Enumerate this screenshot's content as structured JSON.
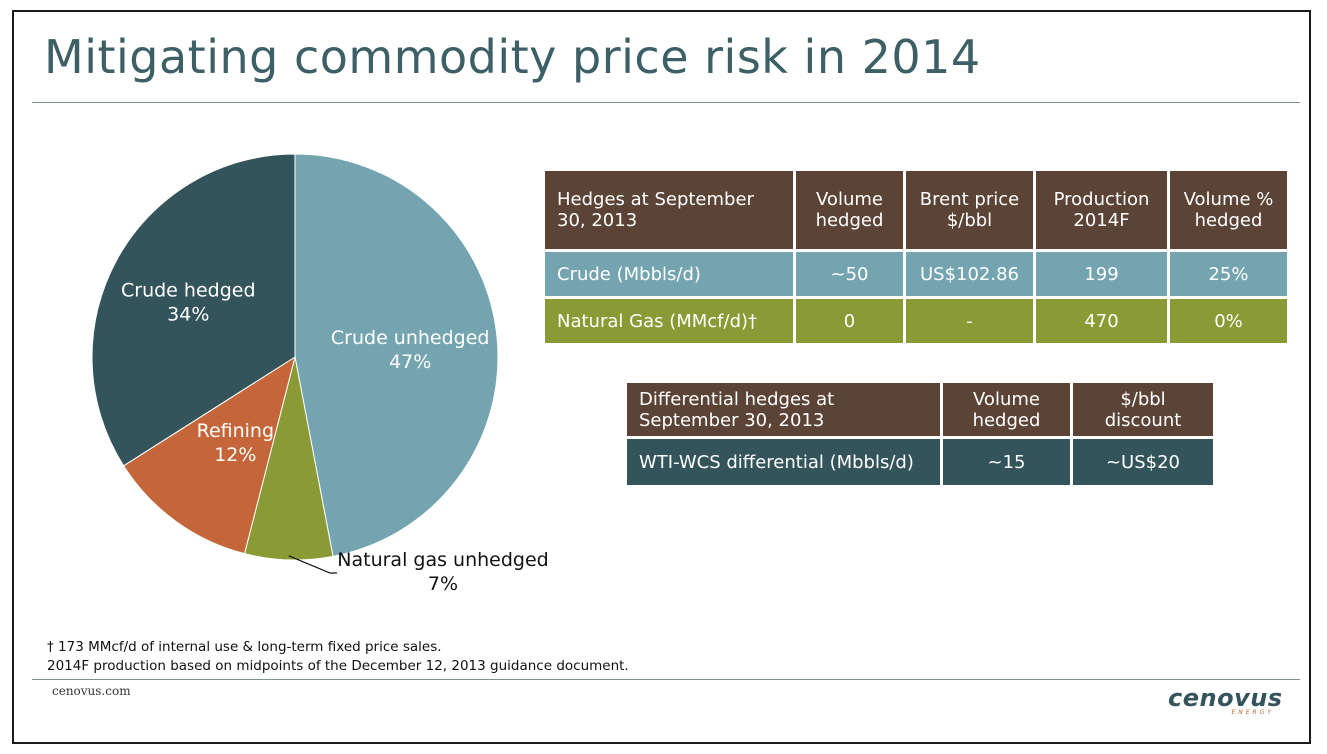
{
  "title": "Mitigating commodity price risk in 2014",
  "chart_data": {
    "type": "pie",
    "slices": [
      {
        "label": "Crude unhedged",
        "pct_text": "47%",
        "value": 47,
        "color": "#74a4b0"
      },
      {
        "label": "Natural gas unhedged",
        "pct_text": "7%",
        "value": 7,
        "color": "#8a9a35"
      },
      {
        "label": "Refining",
        "pct_text": "12%",
        "value": 12,
        "color": "#c5663a"
      },
      {
        "label": "Crude hedged",
        "pct_text": "34%",
        "value": 34,
        "color": "#34545c"
      }
    ]
  },
  "hedges_table": {
    "headers": [
      "Hedges at September 30, 2013",
      "Volume hedged",
      "Brent price $/bbl",
      "Production 2014F",
      "Volume % hedged"
    ],
    "rows": [
      [
        "Crude (Mbbls/d)",
        "~50",
        "US$102.86",
        "199",
        "25%"
      ],
      [
        "Natural Gas (MMcf/d)†",
        "0",
        "-",
        "470",
        "0%"
      ]
    ]
  },
  "diff_table": {
    "headers": [
      "Differential hedges at September 30, 2013",
      "Volume hedged",
      "$/bbl discount"
    ],
    "rows": [
      [
        "WTI-WCS differential (Mbbls/d)",
        "~15",
        "~US$20"
      ]
    ]
  },
  "footnotes": [
    "† 173 MMcf/d of internal use  & long-term fixed price sales.",
    "2014F production based on midpoints of the December 12, 2013 guidance document."
  ],
  "site": "cenovus.com",
  "logo": {
    "word": "cenovus",
    "sub": "ENERGY"
  }
}
